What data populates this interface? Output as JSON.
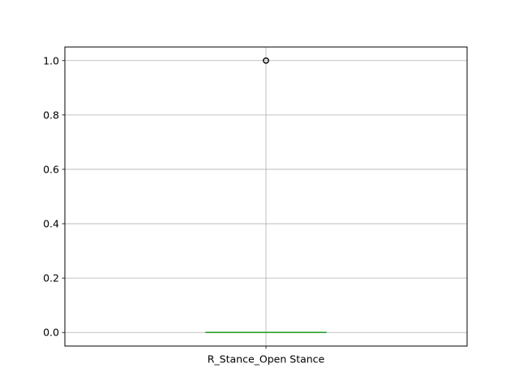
{
  "chart_data": {
    "type": "box",
    "title": "",
    "xlabel": "",
    "ylabel": "",
    "categories": [
      "R_Stance_Open Stance"
    ],
    "boxes": [
      {
        "name": "R_Stance_Open Stance",
        "whislo": 0.0,
        "q1": 0.0,
        "median": 0.0,
        "q3": 0.0,
        "whishi": 0.0,
        "fliers": [
          1.0
        ]
      }
    ],
    "ylim": [
      -0.05,
      1.05
    ],
    "yticks": [
      0.0,
      0.2,
      0.4,
      0.6,
      0.8,
      1.0
    ],
    "ytick_labels": [
      "0.0",
      "0.2",
      "0.4",
      "0.6",
      "0.8",
      "1.0"
    ],
    "grid": true,
    "colors": {
      "box": "#1f77b4",
      "median": "#2ca02c",
      "grid": "#b0b0b0",
      "flier": "#000000"
    }
  }
}
